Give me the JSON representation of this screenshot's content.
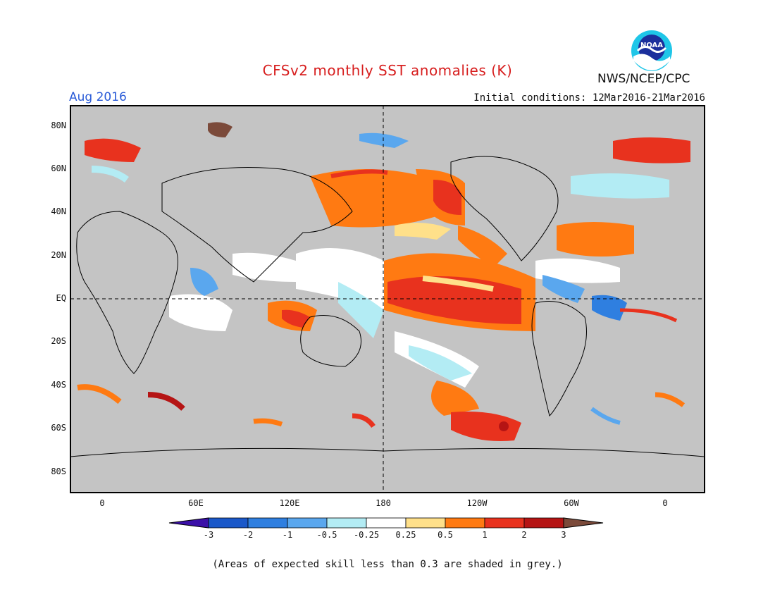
{
  "header": {
    "title": "CFSv2 monthly SST anomalies (K)",
    "month": "Aug 2016",
    "initial_conditions": "Initial conditions: 12Mar2016-21Mar2016",
    "agency": "NWS/NCEP/CPC",
    "logo_text": "NOAA"
  },
  "axes": {
    "lat_labels": [
      "80N",
      "60N",
      "40N",
      "20N",
      "EQ",
      "20S",
      "40S",
      "60S",
      "80S"
    ],
    "lon_labels": [
      "0",
      "60E",
      "120E",
      "180",
      "120W",
      "60W",
      "0"
    ]
  },
  "colorbar": {
    "labels": [
      "-3",
      "-2",
      "-1",
      "-0.5",
      "-0.25",
      "0.25",
      "0.5",
      "1",
      "2",
      "3"
    ],
    "colors": {
      "below": "#3b10a8",
      "bins": [
        "#1a58c9",
        "#2f7fe0",
        "#5aa7ee",
        "#b3ecf4",
        "#ffffff",
        "#ffe08a",
        "#ff7a12",
        "#e8321e",
        "#b51414"
      ],
      "above": "#7b4a3a"
    }
  },
  "map_colors": {
    "skill_shade": "#c4c4c4",
    "frame": "#000000"
  },
  "footnote": "(Areas of expected skill less than 0.3 are shaded in grey.)"
}
